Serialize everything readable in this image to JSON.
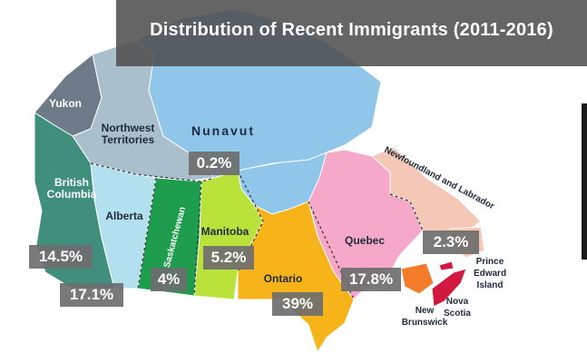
{
  "title": "Distribution of Recent Immigrants (2011-2016)",
  "colors": {
    "yukon": "#6d7b88",
    "northwest_territories": "#a9bfcc",
    "nunavut": "#8fc6ea",
    "british_columbia": "#3f8f7c",
    "alberta": "#b3e0ef",
    "saskatchewan": "#1e9d4e",
    "manitoba": "#b9e23a",
    "ontario": "#f6b41a",
    "quebec": "#f5a8c8",
    "newfoundland_and_labrador": "#f4c7b6",
    "new_brunswick": "#f47b2a",
    "nova_scotia": "#d1183e",
    "prince_edward_island": "#d1183e",
    "water": "#8fc6ea"
  },
  "regions": {
    "yukon": "Yukon",
    "northwest_territories": "Northwest\nTerritories",
    "nunavut": "Nunavut",
    "british_columbia": "British\nColumbia",
    "alberta": "Alberta",
    "saskatchewan": "Saskatchewan",
    "manitoba": "Manitoba",
    "ontario": "Ontario",
    "quebec": "Quebec",
    "newfoundland_and_labrador": "Newfoundland and Labrador",
    "new_brunswick": "New\nBrunswick",
    "nova_scotia": "Nova\nScotia",
    "prince_edward_island": "Prince\nEdward\nIsland"
  },
  "percentages": {
    "territories": "0.2%",
    "british_columbia": "14.5%",
    "alberta": "17.1%",
    "saskatchewan": "4%",
    "manitoba": "5.2%",
    "ontario": "39%",
    "quebec": "17.8%",
    "atlantic": "2.3%"
  }
}
